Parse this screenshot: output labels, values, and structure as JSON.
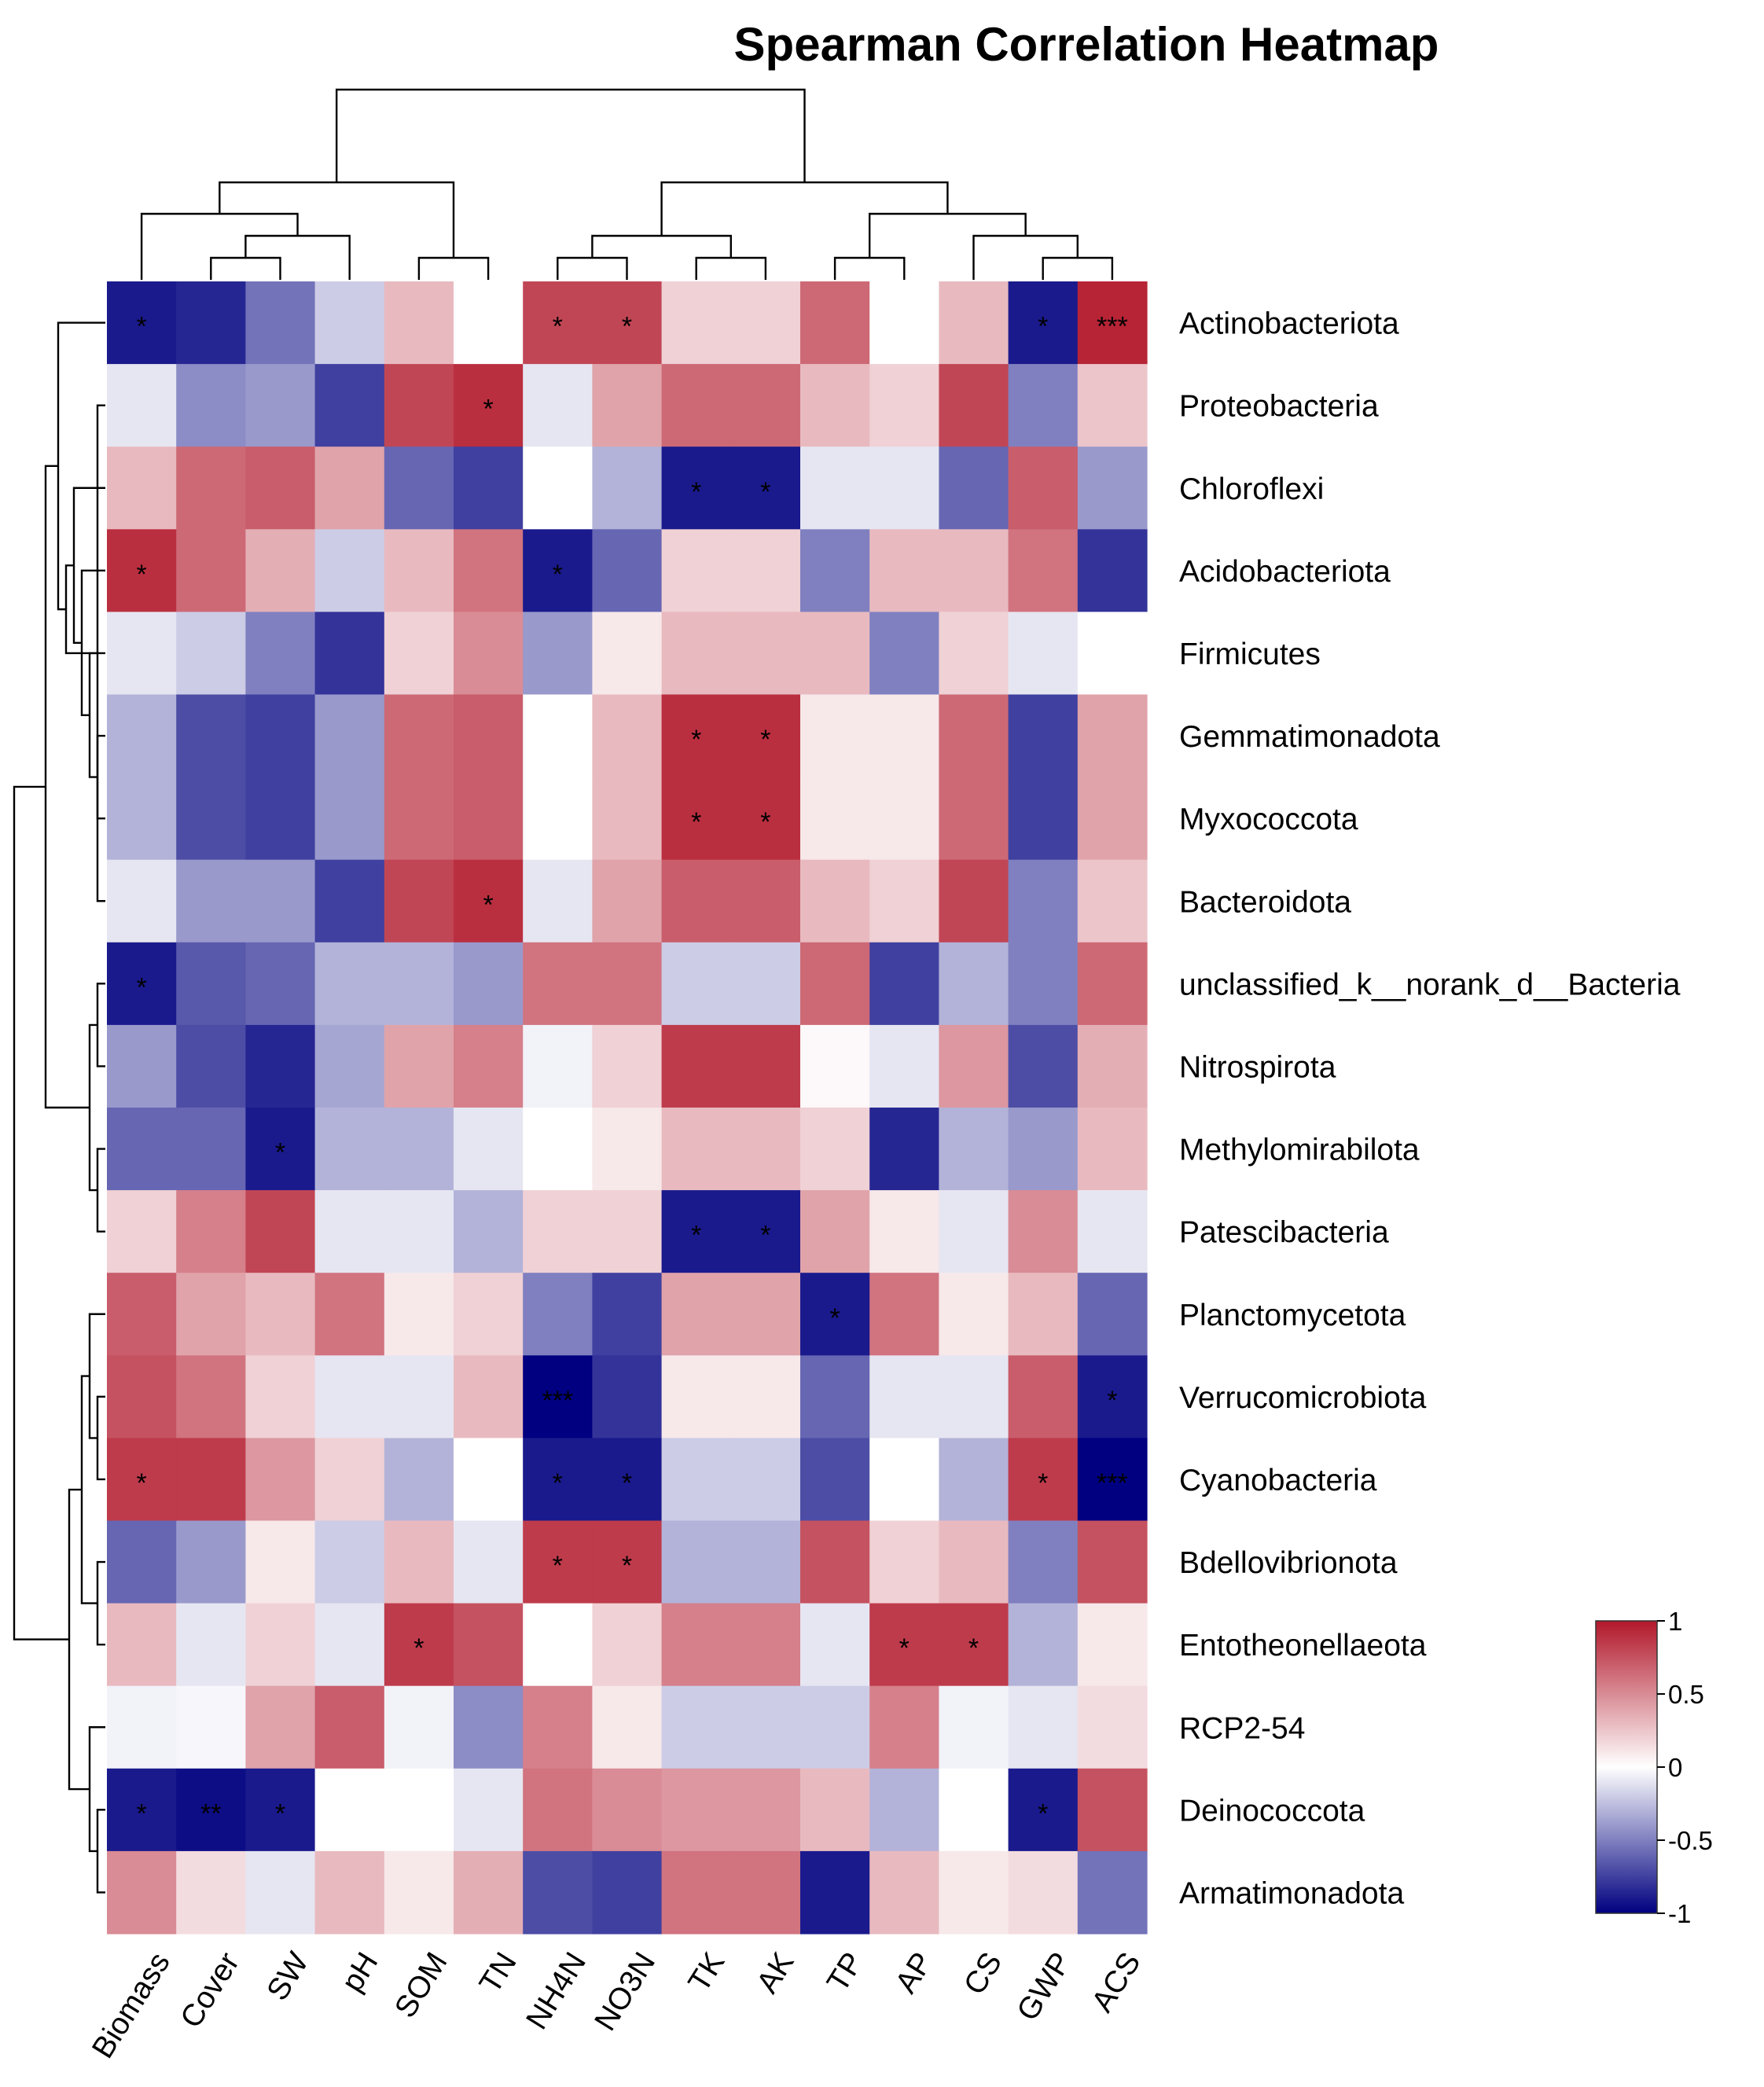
{
  "chart_data": {
    "type": "heatmap",
    "title": "Spearman Correlation Heatmap",
    "xlabels": [
      "Biomass",
      "Cover",
      "SW",
      "pH",
      "SOM",
      "TN",
      "NH4N",
      "NO3N",
      "TK",
      "AK",
      "TP",
      "AP",
      "CS",
      "GWP",
      "ACS"
    ],
    "ylabels": [
      "Actinobacteriota",
      "Proteobacteria",
      "Chloroflexi",
      "Acidobacteriota",
      "Firmicutes",
      "Gemmatimonadota",
      "Myxococcota",
      "Bacteroidota",
      "unclassified_k__norank_d__Bacteria",
      "Nitrospirota",
      "Methylomirabilota",
      "Patescibacteria",
      "Planctomycetota",
      "Verrucomicrobiota",
      "Cyanobacteria",
      "Bdellovibrionota",
      "Entotheonellaeota",
      "RCP2-54",
      "Deinococcota",
      "Armatimonadota"
    ],
    "values": [
      [
        -0.9,
        -0.85,
        -0.55,
        -0.2,
        0.3,
        0.0,
        0.8,
        0.8,
        0.2,
        0.2,
        0.65,
        0.0,
        0.3,
        -0.9,
        0.95
      ],
      [
        -0.1,
        -0.45,
        -0.4,
        -0.75,
        0.8,
        0.9,
        -0.1,
        0.4,
        0.65,
        0.65,
        0.3,
        0.2,
        0.8,
        -0.5,
        0.25
      ],
      [
        0.3,
        0.65,
        0.7,
        0.4,
        -0.6,
        -0.75,
        0.0,
        -0.3,
        -0.9,
        -0.9,
        -0.1,
        -0.1,
        -0.6,
        0.7,
        -0.4
      ],
      [
        0.9,
        0.65,
        0.35,
        -0.2,
        0.3,
        0.6,
        -0.9,
        -0.6,
        0.2,
        0.2,
        -0.5,
        0.3,
        0.3,
        0.6,
        -0.8
      ],
      [
        -0.1,
        -0.2,
        -0.5,
        -0.8,
        0.2,
        0.5,
        -0.4,
        0.1,
        0.3,
        0.3,
        0.3,
        -0.5,
        0.2,
        -0.1,
        0.0
      ],
      [
        -0.3,
        -0.7,
        -0.75,
        -0.4,
        0.65,
        0.7,
        0.0,
        0.3,
        0.9,
        0.9,
        0.1,
        0.1,
        0.65,
        -0.75,
        0.4
      ],
      [
        -0.3,
        -0.7,
        -0.75,
        -0.4,
        0.65,
        0.7,
        0.0,
        0.3,
        0.9,
        0.9,
        0.1,
        0.1,
        0.65,
        -0.75,
        0.4
      ],
      [
        -0.1,
        -0.4,
        -0.4,
        -0.75,
        0.8,
        0.9,
        -0.1,
        0.4,
        0.7,
        0.7,
        0.3,
        0.2,
        0.8,
        -0.5,
        0.25
      ],
      [
        -0.9,
        -0.65,
        -0.6,
        -0.3,
        -0.3,
        -0.4,
        0.6,
        0.6,
        -0.2,
        -0.2,
        0.65,
        -0.75,
        -0.3,
        -0.5,
        0.65
      ],
      [
        -0.4,
        -0.7,
        -0.85,
        -0.35,
        0.4,
        0.55,
        -0.05,
        0.2,
        0.85,
        0.85,
        0.03,
        -0.1,
        0.45,
        -0.7,
        0.35
      ],
      [
        -0.6,
        -0.6,
        -0.9,
        -0.3,
        -0.3,
        -0.1,
        0.0,
        0.1,
        0.3,
        0.3,
        0.2,
        -0.85,
        -0.3,
        -0.4,
        0.3
      ],
      [
        0.2,
        0.55,
        0.8,
        -0.1,
        -0.1,
        -0.3,
        0.2,
        0.2,
        -0.9,
        -0.9,
        0.4,
        0.1,
        -0.1,
        0.5,
        -0.1
      ],
      [
        0.7,
        0.4,
        0.3,
        0.6,
        0.1,
        0.2,
        -0.5,
        -0.75,
        0.4,
        0.4,
        -0.9,
        0.6,
        0.1,
        0.3,
        -0.6
      ],
      [
        0.75,
        0.6,
        0.2,
        -0.1,
        -0.1,
        0.3,
        -1.0,
        -0.8,
        0.1,
        0.1,
        -0.6,
        -0.1,
        -0.1,
        0.7,
        -0.9
      ],
      [
        0.85,
        0.85,
        0.45,
        0.2,
        -0.3,
        0.0,
        -0.9,
        -0.9,
        -0.2,
        -0.2,
        -0.7,
        0.0,
        -0.3,
        0.85,
        -1.0
      ],
      [
        -0.6,
        -0.4,
        0.1,
        -0.2,
        0.3,
        -0.1,
        0.85,
        0.85,
        -0.3,
        -0.3,
        0.75,
        0.2,
        0.3,
        -0.5,
        0.75
      ],
      [
        0.3,
        -0.1,
        0.2,
        -0.1,
        0.85,
        0.75,
        0.0,
        0.2,
        0.55,
        0.55,
        -0.1,
        0.85,
        0.85,
        -0.3,
        0.1
      ],
      [
        -0.05,
        -0.03,
        0.4,
        0.7,
        -0.05,
        -0.45,
        0.55,
        0.1,
        -0.2,
        -0.2,
        -0.2,
        0.55,
        -0.05,
        -0.1,
        0.15
      ],
      [
        -0.9,
        -0.95,
        -0.9,
        0.0,
        0.0,
        -0.1,
        0.6,
        0.5,
        0.45,
        0.45,
        0.3,
        -0.3,
        0.0,
        -0.9,
        0.75
      ],
      [
        0.5,
        0.15,
        -0.1,
        0.3,
        0.1,
        0.35,
        -0.7,
        -0.75,
        0.6,
        0.6,
        -0.9,
        0.3,
        0.1,
        0.15,
        -0.55
      ]
    ],
    "significance": [
      [
        "*",
        "",
        "",
        "",
        "",
        "",
        "*",
        "*",
        "",
        "",
        "",
        "",
        "",
        "*",
        "***"
      ],
      [
        "",
        "",
        "",
        "",
        "",
        "*",
        "",
        "",
        "",
        "",
        "",
        "",
        "",
        "",
        ""
      ],
      [
        "",
        "",
        "",
        "",
        "",
        "",
        "",
        "",
        "*",
        "*",
        "",
        "",
        "",
        "",
        ""
      ],
      [
        "*",
        "",
        "",
        "",
        "",
        "",
        "*",
        "",
        "",
        "",
        "",
        "",
        "",
        "",
        ""
      ],
      [
        "",
        "",
        "",
        "",
        "",
        "",
        "",
        "",
        "",
        "",
        "",
        "",
        "",
        "",
        ""
      ],
      [
        "",
        "",
        "",
        "",
        "",
        "",
        "",
        "",
        "*",
        "*",
        "",
        "",
        "",
        "",
        ""
      ],
      [
        "",
        "",
        "",
        "",
        "",
        "",
        "",
        "",
        "*",
        "*",
        "",
        "",
        "",
        "",
        ""
      ],
      [
        "",
        "",
        "",
        "",
        "",
        "*",
        "",
        "",
        "",
        "",
        "",
        "",
        "",
        "",
        ""
      ],
      [
        "*",
        "",
        "",
        "",
        "",
        "",
        "",
        "",
        "",
        "",
        "",
        "",
        "",
        "",
        ""
      ],
      [
        "",
        "",
        "",
        "",
        "",
        "",
        "",
        "",
        "",
        "",
        "",
        "",
        "",
        "",
        ""
      ],
      [
        "",
        "",
        "*",
        "",
        "",
        "",
        "",
        "",
        "",
        "",
        "",
        "",
        "",
        "",
        ""
      ],
      [
        "",
        "",
        "",
        "",
        "",
        "",
        "",
        "",
        "*",
        "*",
        "",
        "",
        "",
        "",
        ""
      ],
      [
        "",
        "",
        "",
        "",
        "",
        "",
        "",
        "",
        "",
        "",
        "*",
        "",
        "",
        "",
        ""
      ],
      [
        "",
        "",
        "",
        "",
        "",
        "",
        "***",
        "",
        "",
        "",
        "",
        "",
        "",
        "",
        "*"
      ],
      [
        "*",
        "",
        "",
        "",
        "",
        "",
        "*",
        "*",
        "",
        "",
        "",
        "",
        "",
        "*",
        "***"
      ],
      [
        "",
        "",
        "",
        "",
        "",
        "",
        "*",
        "*",
        "",
        "",
        "",
        "",
        "",
        "",
        ""
      ],
      [
        "",
        "",
        "",
        "",
        "*",
        "",
        "",
        "",
        "",
        "",
        "",
        "*",
        "*",
        "",
        ""
      ],
      [
        "",
        "",
        "",
        "",
        "",
        "",
        "",
        "",
        "",
        "",
        "",
        "",
        "",
        "",
        ""
      ],
      [
        "*",
        "**",
        "*",
        "",
        "",
        "",
        "",
        "",
        "",
        "",
        "",
        "",
        "",
        "*",
        ""
      ],
      [
        "",
        "",
        "",
        "",
        "",
        "",
        "",
        "",
        "",
        "",
        "",
        "",
        "",
        "",
        ""
      ]
    ],
    "colorbar": {
      "range": [
        -1,
        1
      ],
      "ticks": [
        "1",
        "0.5",
        "0",
        "-0.5",
        "-1"
      ],
      "colors": {
        "negative": "#000080",
        "zero": "#ffffff",
        "positive": "#b2182b"
      }
    },
    "dendrograms": {
      "columns": "top",
      "rows": "left"
    }
  }
}
